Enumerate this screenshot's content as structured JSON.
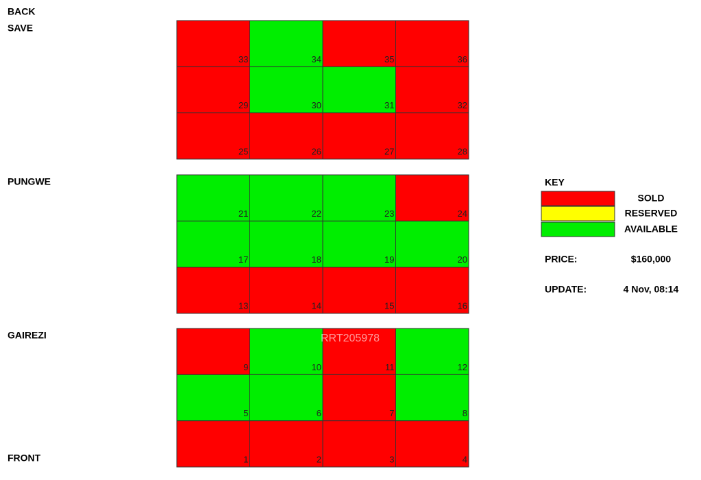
{
  "nav": {
    "back": "BACK",
    "save": "SAVE"
  },
  "side_labels": {
    "top": "PUNGWE",
    "middle": "GAIREZI",
    "bottom": "FRONT"
  },
  "blocks": [
    {
      "rows": [
        [
          {
            "number": 33,
            "color": "#ff0000"
          },
          {
            "number": 34,
            "color": "#00ee00"
          },
          {
            "number": 35,
            "color": "#ff0000"
          },
          {
            "number": 36,
            "color": "#ff0000"
          }
        ],
        [
          {
            "number": 29,
            "color": "#ff0000"
          },
          {
            "number": 30,
            "color": "#00ee00"
          },
          {
            "number": 31,
            "color": "#00ee00"
          },
          {
            "number": 32,
            "color": "#ff0000"
          }
        ],
        [
          {
            "number": 25,
            "color": "#ff0000"
          },
          {
            "number": 26,
            "color": "#ff0000"
          },
          {
            "number": 27,
            "color": "#ff0000"
          },
          {
            "number": 28,
            "color": "#ff0000"
          }
        ]
      ]
    },
    {
      "rows": [
        [
          {
            "number": 21,
            "color": "#00ee00"
          },
          {
            "number": 22,
            "color": "#00ee00"
          },
          {
            "number": 23,
            "color": "#00ee00"
          },
          {
            "number": 24,
            "color": "#ff0000"
          }
        ],
        [
          {
            "number": 17,
            "color": "#00ee00"
          },
          {
            "number": 18,
            "color": "#00ee00"
          },
          {
            "number": 19,
            "color": "#00ee00"
          },
          {
            "number": 20,
            "color": "#00ee00"
          }
        ],
        [
          {
            "number": 13,
            "color": "#ff0000"
          },
          {
            "number": 14,
            "color": "#ff0000"
          },
          {
            "number": 15,
            "color": "#ff0000"
          },
          {
            "number": 16,
            "color": "#ff0000"
          }
        ]
      ]
    },
    {
      "rows": [
        [
          {
            "number": 9,
            "color": "#ff0000"
          },
          {
            "number": 10,
            "color": "#00ee00"
          },
          {
            "number": 11,
            "color": "#ff0000"
          },
          {
            "number": 12,
            "color": "#00ee00"
          }
        ],
        [
          {
            "number": 5,
            "color": "#00ee00"
          },
          {
            "number": 6,
            "color": "#00ee00"
          },
          {
            "number": 7,
            "color": "#ff0000"
          },
          {
            "number": 8,
            "color": "#00ee00"
          }
        ],
        [
          {
            "number": 1,
            "color": "#ff0000"
          },
          {
            "number": 2,
            "color": "#ff0000"
          },
          {
            "number": 3,
            "color": "#ff0000"
          },
          {
            "number": 4,
            "color": "#ff0000"
          }
        ]
      ]
    }
  ],
  "key": {
    "title": "KEY",
    "items": [
      {
        "label": "SOLD",
        "color": "#ff0000"
      },
      {
        "label": "RESERVED",
        "color": "#ffff00"
      },
      {
        "label": "AVAILABLE",
        "color": "#00ee00"
      }
    ]
  },
  "price": {
    "label": "PRICE:",
    "value": "$160,000"
  },
  "update": {
    "label": "UPDATE:",
    "value": "4 Nov, 08:14"
  },
  "watermark": "RRT205978"
}
